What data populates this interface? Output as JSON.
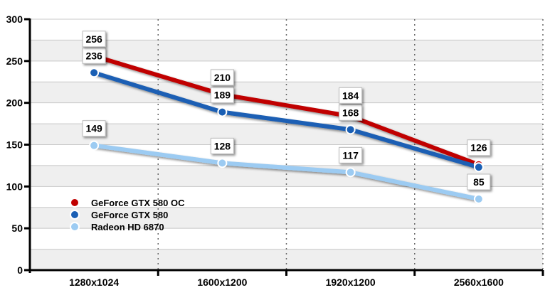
{
  "chart_data": {
    "type": "line",
    "title": "",
    "xlabel": "",
    "ylabel": "",
    "categories": [
      "1280x1024",
      "1600x1200",
      "1920x1200",
      "2560x1600"
    ],
    "ylim": [
      0,
      300
    ],
    "yticks": [
      0,
      50,
      100,
      150,
      200,
      250,
      300
    ],
    "grid": true,
    "legend_placement": "lower-left",
    "series": [
      {
        "name": "GeForce GTX 580 OC",
        "color": "#c00000",
        "values": [
          256,
          210,
          184,
          126
        ],
        "hidden_labels": []
      },
      {
        "name": "GeForce GTX 580",
        "color": "#1a5fb4",
        "values": [
          236,
          189,
          168,
          123
        ],
        "hidden_labels": [
          3
        ]
      },
      {
        "name": "Radeon HD 6870",
        "color": "#9ccbf2",
        "values": [
          149,
          128,
          117,
          85
        ],
        "hidden_labels": []
      }
    ]
  }
}
